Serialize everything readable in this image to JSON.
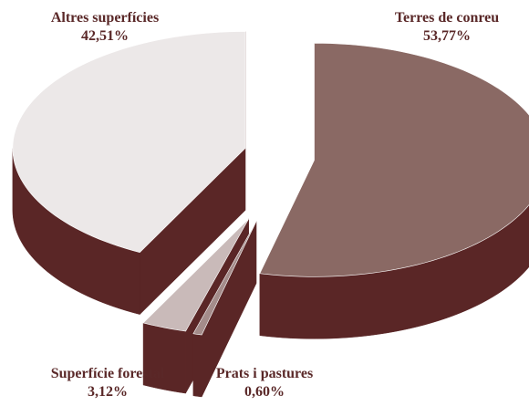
{
  "chart_data": {
    "type": "pie3d",
    "categories": [
      "Terres de conreu",
      "Prats i pastures",
      "Superfície forestal",
      "Altres superfícies"
    ],
    "values": [
      53.77,
      0.6,
      3.12,
      42.51
    ],
    "value_labels": [
      "53,77%",
      "0,60%",
      "3,12%",
      "42,51%"
    ],
    "colors": [
      "#8a6964",
      "#a48c8a",
      "#c9bab9",
      "#ece8e8"
    ],
    "side_color": "#5a2626"
  }
}
